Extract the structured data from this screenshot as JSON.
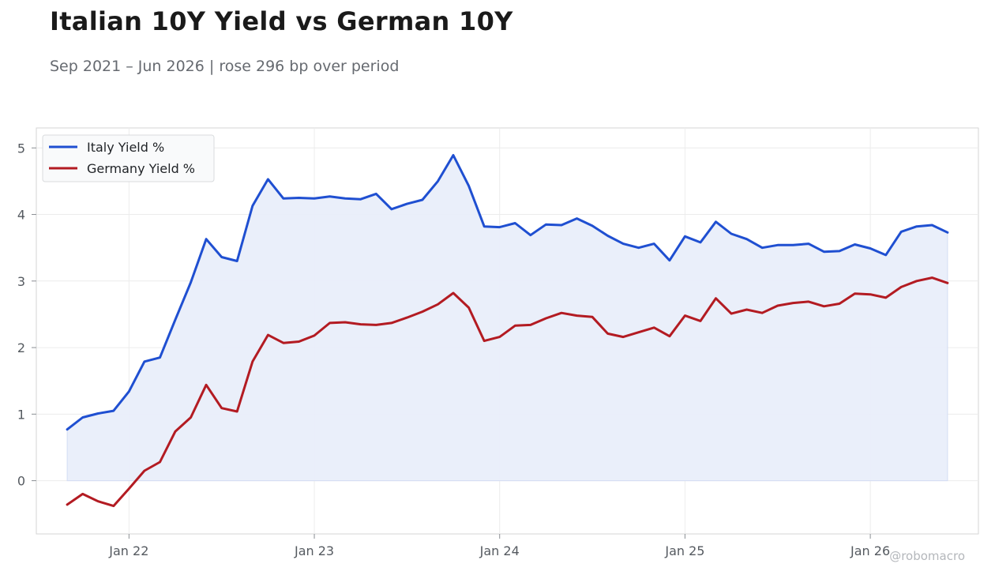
{
  "title": "Italian 10Y Yield vs German 10Y",
  "subtitle": "Sep 2021 – Jun 2026 | rose 296 bp over period",
  "credit": "@robomacro",
  "colors": {
    "italy": "#1f4fd1",
    "germany": "#b31b22",
    "fill": "#e9eefa",
    "grid": "#ececec",
    "frame": "#d6d6d6",
    "tick_text": "#555a60"
  },
  "chart_data": {
    "type": "line",
    "x": [
      "2021-09",
      "2021-10",
      "2021-11",
      "2021-12",
      "2022-01",
      "2022-02",
      "2022-03",
      "2022-04",
      "2022-05",
      "2022-06",
      "2022-07",
      "2022-08",
      "2022-09",
      "2022-10",
      "2022-11",
      "2022-12",
      "2023-01",
      "2023-02",
      "2023-03",
      "2023-04",
      "2023-05",
      "2023-06",
      "2023-07",
      "2023-08",
      "2023-09",
      "2023-10",
      "2023-11",
      "2023-12",
      "2024-01",
      "2024-02",
      "2024-03",
      "2024-04",
      "2024-05",
      "2024-06",
      "2024-07",
      "2024-08",
      "2024-09",
      "2024-10",
      "2024-11",
      "2024-12",
      "2025-01",
      "2025-02",
      "2025-03",
      "2025-04",
      "2025-05",
      "2025-06",
      "2025-07",
      "2025-08",
      "2025-09",
      "2025-10",
      "2025-11",
      "2025-12",
      "2026-01",
      "2026-02",
      "2026-03",
      "2026-04",
      "2026-05",
      "2026-06"
    ],
    "series": [
      {
        "name": "Italy Yield %",
        "color": "#1f4fd1",
        "fill_to_zero": true,
        "values": [
          0.77,
          0.95,
          1.01,
          1.05,
          1.34,
          1.79,
          1.85,
          2.42,
          2.98,
          3.63,
          3.36,
          3.3,
          4.13,
          4.53,
          4.24,
          4.25,
          4.24,
          4.27,
          4.24,
          4.23,
          4.31,
          4.08,
          4.16,
          4.22,
          4.5,
          4.89,
          4.43,
          3.82,
          3.81,
          3.87,
          3.69,
          3.85,
          3.84,
          3.94,
          3.83,
          3.68,
          3.56,
          3.5,
          3.56,
          3.31,
          3.67,
          3.58,
          3.89,
          3.71,
          3.63,
          3.5,
          3.54,
          3.54,
          3.56,
          3.44,
          3.45,
          3.55,
          3.49,
          3.39,
          3.74,
          3.82,
          3.84,
          3.73
        ]
      },
      {
        "name": "Germany Yield %",
        "color": "#b31b22",
        "fill_to_zero": false,
        "values": [
          -0.36,
          -0.2,
          -0.31,
          -0.38,
          -0.12,
          0.15,
          0.28,
          0.74,
          0.95,
          1.44,
          1.09,
          1.04,
          1.79,
          2.19,
          2.07,
          2.09,
          2.18,
          2.37,
          2.38,
          2.35,
          2.34,
          2.37,
          2.45,
          2.54,
          2.65,
          2.82,
          2.6,
          2.1,
          2.16,
          2.33,
          2.34,
          2.44,
          2.52,
          2.48,
          2.46,
          2.21,
          2.16,
          2.23,
          2.3,
          2.17,
          2.48,
          2.4,
          2.74,
          2.51,
          2.57,
          2.52,
          2.63,
          2.67,
          2.69,
          2.62,
          2.66,
          2.81,
          2.8,
          2.75,
          2.91,
          3.0,
          3.05,
          2.97
        ]
      }
    ],
    "xticks": [
      {
        "date": "2022-01",
        "label": "Jan 22"
      },
      {
        "date": "2023-01",
        "label": "Jan 23"
      },
      {
        "date": "2024-01",
        "label": "Jan 24"
      },
      {
        "date": "2025-01",
        "label": "Jan 25"
      },
      {
        "date": "2026-01",
        "label": "Jan 26"
      }
    ],
    "yticks": [
      0,
      1,
      2,
      3,
      4,
      5
    ],
    "ylim": [
      -0.8,
      5.3
    ],
    "xlim": [
      "2021-07",
      "2026-08"
    ],
    "grid": true,
    "legend": "top-left",
    "xlabel": "",
    "ylabel": ""
  }
}
